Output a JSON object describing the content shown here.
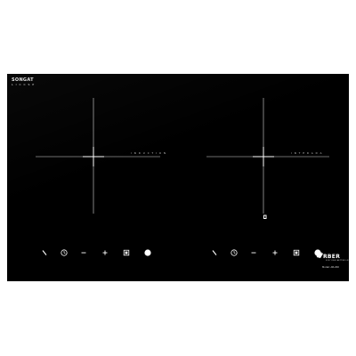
{
  "brand": {
    "name": "SONGAT",
    "tagline": "L I C C S P"
  },
  "zones": [
    {
      "label": "I N D U C T I O N"
    },
    {
      "label": "I N T E R A D A"
    }
  ],
  "controls": [
    {
      "icon": "power-slash-icon"
    },
    {
      "icon": "timer-icon"
    },
    {
      "icon": "minus-icon"
    },
    {
      "icon": "plus-icon"
    },
    {
      "icon": "lock-square-icon"
    },
    {
      "icon": "power-circle-icon"
    }
  ],
  "logo": {
    "wordmark": "RBER",
    "sub": "FOR YOUR BETTER LIFE",
    "model": "Model: AB-200"
  },
  "colors": {
    "glass": "#000000",
    "markings": "#e6e6e6",
    "background": "#ffffff"
  }
}
